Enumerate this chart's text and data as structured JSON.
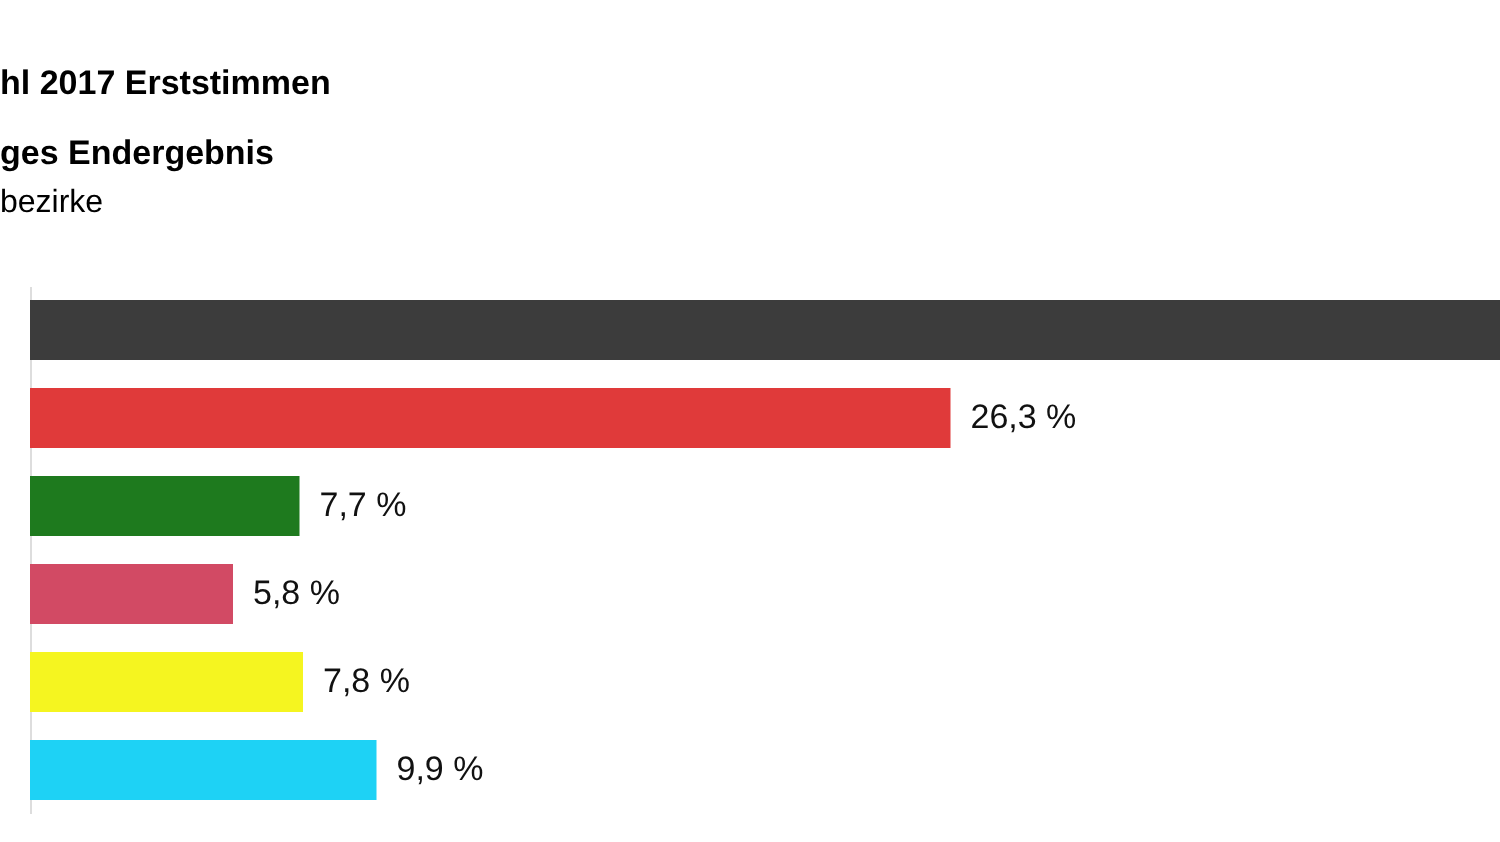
{
  "chart_data": {
    "type": "bar",
    "orientation": "horizontal",
    "title": "hl 2017 Erststimmen",
    "subtitle": "ges Endergebnis",
    "annotations": [
      "bezirke"
    ],
    "categories": [
      null,
      null,
      null,
      null,
      null,
      null
    ],
    "values": [
      42.0,
      26.3,
      7.7,
      5.8,
      7.8,
      9.9
    ],
    "value_labels": [
      null,
      "26,3 %",
      "7,7 %",
      "5,8 %",
      "7,8 %",
      "9,9 %"
    ],
    "colors": [
      "#3c3c3c",
      "#e03a3a",
      "#1e7a1e",
      "#d24a64",
      "#f5f520",
      "#1ed2f5"
    ],
    "xlim": [
      0,
      42
    ]
  }
}
